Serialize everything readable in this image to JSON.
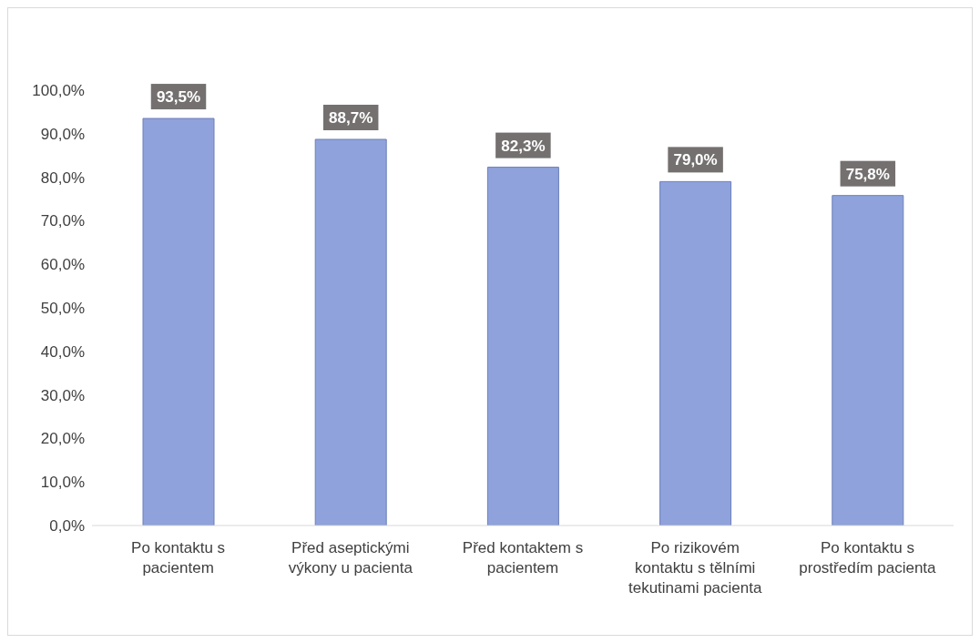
{
  "chart_data": {
    "type": "bar",
    "categories": [
      "Po kontaktu s pacientem",
      "Před aseptickými výkony u pacienta",
      "Před kontaktem s pacientem",
      "Po rizikovém kontaktu s tělními tekutinami pacienta",
      "Po kontaktu s prostředím pacienta"
    ],
    "values": [
      93.5,
      88.7,
      82.3,
      79.0,
      75.8
    ],
    "value_labels": [
      "93,5%",
      "88,7%",
      "82,3%",
      "79,0%",
      "75,8%"
    ],
    "color": "#8fa2dc",
    "ylim": [
      0,
      100
    ],
    "yticks": [
      {
        "value": 0,
        "label": "0,0%"
      },
      {
        "value": 10,
        "label": "10,0%"
      },
      {
        "value": 20,
        "label": "20,0%"
      },
      {
        "value": 30,
        "label": "30,0%"
      },
      {
        "value": 40,
        "label": "40,0%"
      },
      {
        "value": 50,
        "label": "50,0%"
      },
      {
        "value": 60,
        "label": "60,0%"
      },
      {
        "value": 70,
        "label": "70,0%"
      },
      {
        "value": 80,
        "label": "80,0%"
      },
      {
        "value": 90,
        "label": "90,0%"
      },
      {
        "value": 100,
        "label": "100,0%"
      }
    ],
    "grid": false,
    "legend": false
  }
}
